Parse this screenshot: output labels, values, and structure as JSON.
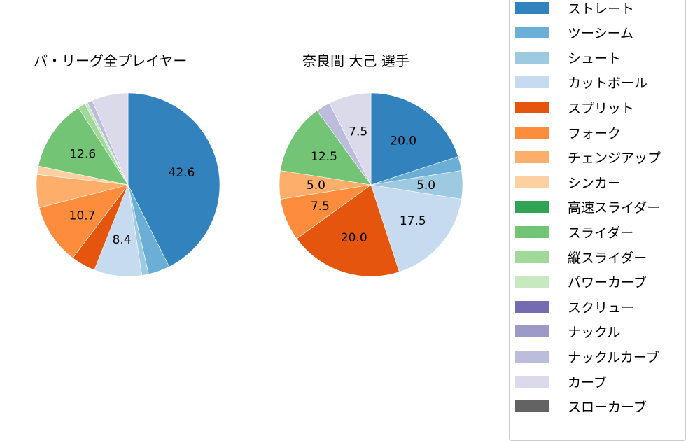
{
  "chart_data": [
    {
      "type": "pie",
      "title": "パ・リーグ全プレイヤー",
      "categories": [
        "ストレート",
        "ツーシーム",
        "シュート",
        "カットボール",
        "スプリット",
        "フォーク",
        "チェンジアップ",
        "シンカー",
        "スライダー",
        "縦スライダー",
        "パワーカーブ",
        "ナックルカーブ",
        "カーブ"
      ],
      "values": [
        42.6,
        3.8,
        1.2,
        8.4,
        4.3,
        10.7,
        5.8,
        1.5,
        12.6,
        1.3,
        0.5,
        0.9,
        6.4
      ],
      "labels_shown": [
        "42.6",
        "",
        "",
        "8.4",
        "",
        "10.7",
        "",
        "",
        "12.6",
        "",
        "",
        "",
        ""
      ],
      "start_angle": 90,
      "direction": "clockwise"
    },
    {
      "type": "pie",
      "title": "奈良間 大己  選手",
      "categories": [
        "ストレート",
        "ツーシーム",
        "シュート",
        "カットボール",
        "スプリット",
        "フォーク",
        "チェンジアップ",
        "スライダー",
        "ナックルカーブ",
        "カーブ"
      ],
      "values": [
        20.0,
        2.5,
        5.0,
        17.5,
        20.0,
        7.5,
        5.0,
        12.5,
        2.5,
        7.5
      ],
      "labels_shown": [
        "20.0",
        "",
        "5.0",
        "17.5",
        "20.0",
        "7.5",
        "5.0",
        "12.5",
        "",
        "7.5"
      ],
      "start_angle": 90,
      "direction": "clockwise"
    }
  ],
  "titles": {
    "left": "パ・リーグ全プレイヤー",
    "right": "奈良間 大己  選手"
  },
  "colors": {
    "ストレート": "#3182bd",
    "ツーシーム": "#6baed6",
    "シュート": "#9ecae1",
    "カットボール": "#c6dbef",
    "スプリット": "#e6550d",
    "フォーク": "#fd8d3c",
    "チェンジアップ": "#fdae6b",
    "シンカー": "#fdd0a2",
    "高速スライダー": "#31a354",
    "スライダー": "#74c476",
    "縦スライダー": "#a1d99b",
    "パワーカーブ": "#c7e9c0",
    "スクリュー": "#756bb1",
    "ナックル": "#9e9ac8",
    "ナックルカーブ": "#bcbddc",
    "カーブ": "#dadaeb",
    "スローカーブ": "#636363"
  },
  "legend": {
    "items": [
      {
        "label": "ストレート",
        "color": "#3182bd"
      },
      {
        "label": "ツーシーム",
        "color": "#6baed6"
      },
      {
        "label": "シュート",
        "color": "#9ecae1"
      },
      {
        "label": "カットボール",
        "color": "#c6dbef"
      },
      {
        "label": "スプリット",
        "color": "#e6550d"
      },
      {
        "label": "フォーク",
        "color": "#fd8d3c"
      },
      {
        "label": "チェンジアップ",
        "color": "#fdae6b"
      },
      {
        "label": "シンカー",
        "color": "#fdd0a2"
      },
      {
        "label": "高速スライダー",
        "color": "#31a354"
      },
      {
        "label": "スライダー",
        "color": "#74c476"
      },
      {
        "label": "縦スライダー",
        "color": "#a1d99b"
      },
      {
        "label": "パワーカーブ",
        "color": "#c7e9c0"
      },
      {
        "label": "スクリュー",
        "color": "#756bb1"
      },
      {
        "label": "ナックル",
        "color": "#9e9ac8"
      },
      {
        "label": "ナックルカーブ",
        "color": "#bcbddc"
      },
      {
        "label": "カーブ",
        "color": "#dadaeb"
      },
      {
        "label": "スローカーブ",
        "color": "#636363"
      }
    ]
  }
}
